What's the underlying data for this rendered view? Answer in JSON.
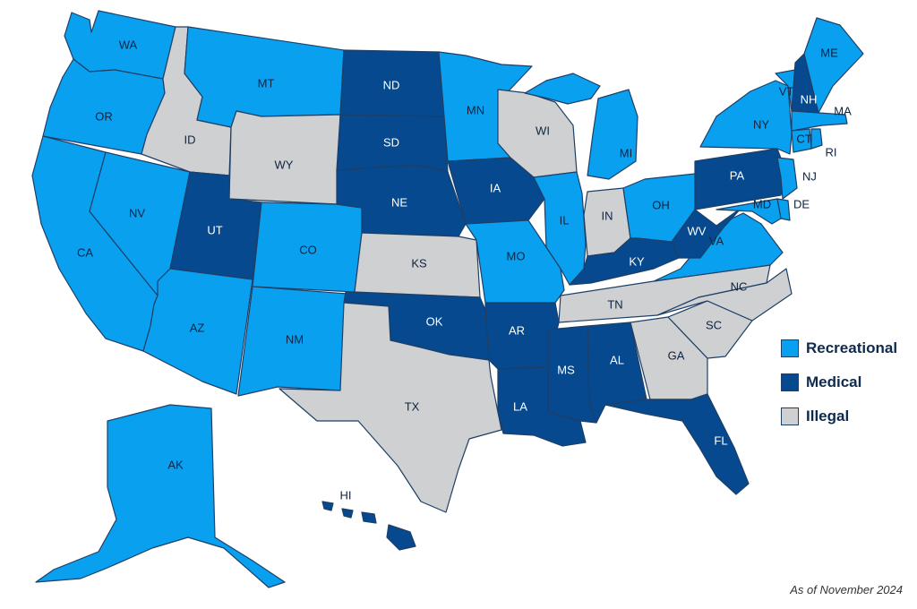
{
  "legend": {
    "recreational": "Recreational",
    "medical": "Medical",
    "illegal": "Illegal"
  },
  "colors": {
    "recreational": "#0aa0f0",
    "medical": "#06498e",
    "illegal": "#cfd0d2"
  },
  "footnote": "As of November 2024",
  "states": [
    {
      "code": "WA",
      "status": "recreational"
    },
    {
      "code": "OR",
      "status": "recreational"
    },
    {
      "code": "CA",
      "status": "recreational"
    },
    {
      "code": "NV",
      "status": "recreational"
    },
    {
      "code": "ID",
      "status": "illegal"
    },
    {
      "code": "MT",
      "status": "recreational"
    },
    {
      "code": "WY",
      "status": "illegal"
    },
    {
      "code": "UT",
      "status": "medical"
    },
    {
      "code": "AZ",
      "status": "recreational"
    },
    {
      "code": "CO",
      "status": "recreational"
    },
    {
      "code": "NM",
      "status": "recreational"
    },
    {
      "code": "ND",
      "status": "medical"
    },
    {
      "code": "SD",
      "status": "medical"
    },
    {
      "code": "NE",
      "status": "medical"
    },
    {
      "code": "KS",
      "status": "illegal"
    },
    {
      "code": "OK",
      "status": "medical"
    },
    {
      "code": "TX",
      "status": "illegal"
    },
    {
      "code": "MN",
      "status": "recreational"
    },
    {
      "code": "IA",
      "status": "medical"
    },
    {
      "code": "MO",
      "status": "recreational"
    },
    {
      "code": "AR",
      "status": "medical"
    },
    {
      "code": "LA",
      "status": "medical"
    },
    {
      "code": "WI",
      "status": "illegal"
    },
    {
      "code": "IL",
      "status": "recreational"
    },
    {
      "code": "MI",
      "status": "recreational"
    },
    {
      "code": "IN",
      "status": "illegal"
    },
    {
      "code": "OH",
      "status": "recreational"
    },
    {
      "code": "KY",
      "status": "medical"
    },
    {
      "code": "TN",
      "status": "illegal"
    },
    {
      "code": "MS",
      "status": "medical"
    },
    {
      "code": "AL",
      "status": "medical"
    },
    {
      "code": "GA",
      "status": "illegal"
    },
    {
      "code": "FL",
      "status": "medical"
    },
    {
      "code": "SC",
      "status": "illegal"
    },
    {
      "code": "NC",
      "status": "illegal"
    },
    {
      "code": "VA",
      "status": "recreational"
    },
    {
      "code": "WV",
      "status": "medical"
    },
    {
      "code": "PA",
      "status": "medical"
    },
    {
      "code": "NY",
      "status": "recreational"
    },
    {
      "code": "VT",
      "status": "recreational"
    },
    {
      "code": "NH",
      "status": "medical"
    },
    {
      "code": "ME",
      "status": "recreational"
    },
    {
      "code": "MA",
      "status": "recreational"
    },
    {
      "code": "CT",
      "status": "recreational"
    },
    {
      "code": "RI",
      "status": "recreational"
    },
    {
      "code": "NJ",
      "status": "recreational"
    },
    {
      "code": "DE",
      "status": "recreational"
    },
    {
      "code": "MD",
      "status": "recreational"
    },
    {
      "code": "AK",
      "status": "recreational"
    },
    {
      "code": "HI",
      "status": "medical"
    }
  ]
}
